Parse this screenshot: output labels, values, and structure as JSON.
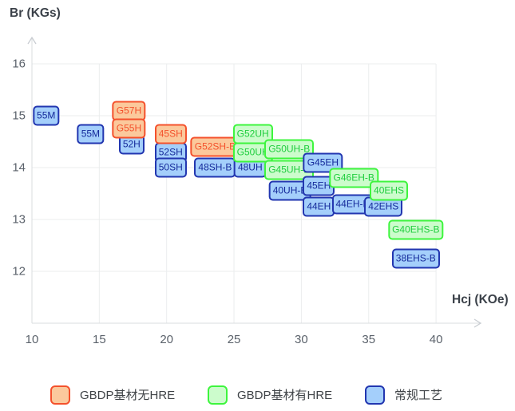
{
  "colors": {
    "orange": {
      "fill": "#fbc99c",
      "border": "#f4512c",
      "text": "#f4512c"
    },
    "green": {
      "fill": "#ccfccc",
      "border": "#3df53d",
      "text": "#20ce3e"
    },
    "blue": {
      "fill": "#a4cffb",
      "border": "#2236b0",
      "text": "#152a9b"
    }
  },
  "legend": [
    {
      "key": "orange",
      "label": "GBDP基材无HRE"
    },
    {
      "key": "green",
      "label": "GBDP基材有HRE"
    },
    {
      "key": "blue",
      "label": "常规工艺"
    }
  ],
  "chart_data": {
    "type": "scatter",
    "title": "",
    "x_axis": {
      "label": "Hcj (KOe)",
      "ticks": [
        10,
        15,
        20,
        25,
        30,
        35,
        40
      ],
      "range": [
        10,
        43.5
      ]
    },
    "y_axis": {
      "label": "Br (KGs)",
      "ticks": [
        16,
        15,
        14,
        13,
        12
      ],
      "range": [
        11,
        16.5
      ]
    },
    "grid": true,
    "legend_position": "bottom",
    "series_names": {
      "orange": "GBDP基材无HRE",
      "green": "GBDP基材有HRE",
      "blue": "常规工艺"
    },
    "points": [
      {
        "label": "55M",
        "series": "blue",
        "hcj": 11.05,
        "br": 15.0
      },
      {
        "label": "55M",
        "series": "blue",
        "hcj": 14.35,
        "br": 14.65
      },
      {
        "label": "52H",
        "series": "blue",
        "hcj": 17.4,
        "br": 14.45
      },
      {
        "label": "G57H",
        "series": "orange",
        "hcj": 17.2,
        "br": 15.1
      },
      {
        "label": "G55H",
        "series": "orange",
        "hcj": 17.2,
        "br": 14.75
      },
      {
        "label": "52SH",
        "series": "blue",
        "hcj": 20.3,
        "br": 14.3
      },
      {
        "label": "50SH",
        "series": "blue",
        "hcj": 20.3,
        "br": 14.0
      },
      {
        "label": "45SH",
        "series": "orange",
        "hcj": 20.3,
        "br": 14.65
      },
      {
        "label": "48SH-B",
        "series": "blue",
        "hcj": 23.6,
        "br": 14.0
      },
      {
        "label": "G52SH-B",
        "series": "orange",
        "hcj": 23.6,
        "br": 14.4
      },
      {
        "label": "48UH",
        "series": "blue",
        "hcj": 26.2,
        "br": 14.0
      },
      {
        "label": "G52UH",
        "series": "green",
        "hcj": 26.4,
        "br": 14.65
      },
      {
        "label": "G50UH",
        "series": "green",
        "hcj": 26.4,
        "br": 14.3
      },
      {
        "label": "40UH-B",
        "series": "blue",
        "hcj": 29.15,
        "br": 13.55
      },
      {
        "label": "G50UH-B",
        "series": "green",
        "hcj": 29.1,
        "br": 14.35
      },
      {
        "label": "G45UH-B",
        "series": "green",
        "hcj": 29.1,
        "br": 13.95
      },
      {
        "label": "44EH",
        "series": "blue",
        "hcj": 31.3,
        "br": 13.25
      },
      {
        "label": "45EH",
        "series": "blue",
        "hcj": 31.3,
        "br": 13.65
      },
      {
        "label": "G45EH",
        "series": "blue",
        "hcj": 31.6,
        "br": 14.1
      },
      {
        "label": "44EH-B",
        "series": "blue",
        "hcj": 33.8,
        "br": 13.3
      },
      {
        "label": "G46EH-B",
        "series": "green",
        "hcj": 33.9,
        "br": 13.8
      },
      {
        "label": "42EHS",
        "series": "blue",
        "hcj": 36.1,
        "br": 13.25
      },
      {
        "label": "40EHS",
        "series": "green",
        "hcj": 36.5,
        "br": 13.55
      },
      {
        "label": "G40EHS-B",
        "series": "green",
        "hcj": 38.5,
        "br": 12.8
      },
      {
        "label": "38EHS-B",
        "series": "blue",
        "hcj": 38.5,
        "br": 12.25
      }
    ]
  }
}
